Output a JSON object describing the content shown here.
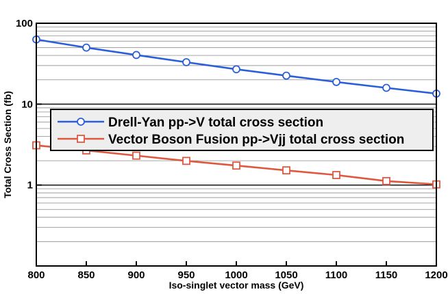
{
  "chart_data": {
    "type": "line",
    "title": "",
    "xlabel": "Iso-singlet vector mass (GeV)",
    "ylabel": "Total Cross Section (fb)",
    "xlim": [
      800,
      1200
    ],
    "ylim": [
      0.1,
      100
    ],
    "yscale": "log",
    "grid": true,
    "legend_position": "center",
    "x_ticks": [
      "800",
      "850",
      "900",
      "950",
      "1000",
      "1050",
      "1100",
      "1150",
      "1200"
    ],
    "y_ticks": [
      "1",
      "10",
      "100"
    ],
    "x": [
      800,
      850,
      900,
      950,
      1000,
      1050,
      1100,
      1150,
      1200
    ],
    "series": [
      {
        "name": "Drell-Yan pp->V total cross section",
        "color": "#2b5fd9",
        "marker": "circle",
        "values": [
          63,
          50,
          40.5,
          33,
          27,
          22.5,
          18.8,
          15.9,
          13.5
        ]
      },
      {
        "name": "Vector Boson Fusion pp->Vjj total cross section",
        "color": "#e0573f",
        "marker": "square",
        "values": [
          3.1,
          2.68,
          2.31,
          1.99,
          1.74,
          1.52,
          1.33,
          1.12,
          1.02
        ]
      }
    ]
  }
}
